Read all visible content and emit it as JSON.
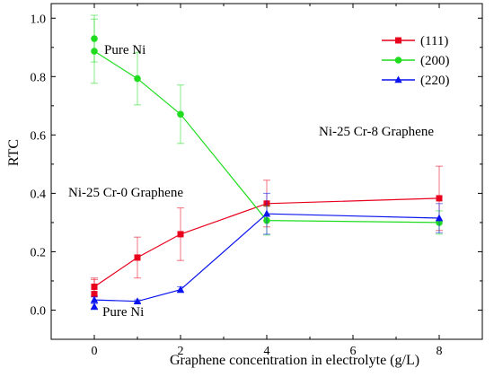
{
  "chart_data": {
    "type": "line",
    "title": "",
    "xlabel": "Graphene concentration in electrolyte (g/L)",
    "ylabel": "RTC",
    "xlim": [
      -1,
      9
    ],
    "ylim": [
      -0.1,
      1.05
    ],
    "xticks": [
      "0",
      "2",
      "4",
      "6",
      "8"
    ],
    "yticks": [
      "0.0",
      "0.2",
      "0.4",
      "0.6",
      "0.8",
      "1.0"
    ],
    "x": [
      0,
      1,
      2,
      4,
      8
    ],
    "legend_position": "top-right",
    "series": [
      {
        "name": "(111)",
        "color": "#e8001c",
        "marker": "square",
        "values": [
          0.08,
          0.18,
          0.26,
          0.365,
          0.383
        ],
        "errors": [
          0.03,
          0.07,
          0.09,
          0.08,
          0.11
        ],
        "pure_ni": {
          "value": 0.055,
          "error": 0.05
        }
      },
      {
        "name": "(200)",
        "color": "#1fdc1f",
        "marker": "circle",
        "values": [
          0.887,
          0.793,
          0.671,
          0.307,
          0.3
        ],
        "errors": [
          0.11,
          0.09,
          0.1,
          0.05,
          0.04
        ],
        "pure_ni": {
          "value": 0.93,
          "error": 0.08
        }
      },
      {
        "name": "(220)",
        "color": "#0a14ee",
        "marker": "triangle",
        "values": [
          0.035,
          0.03,
          0.07,
          0.33,
          0.315
        ],
        "errors": [
          0.01,
          0.005,
          0.01,
          0.07,
          0.05
        ],
        "pure_ni": {
          "value": 0.012,
          "error": 0.01
        }
      }
    ],
    "annotations": {
      "pure_ni_top": "Pure Ni",
      "pure_ni_bottom": "Pure Ni",
      "graphene_0": "Ni-25 Cr-0 Graphene",
      "graphene_8": "Ni-25 Cr-8 Graphene"
    }
  }
}
